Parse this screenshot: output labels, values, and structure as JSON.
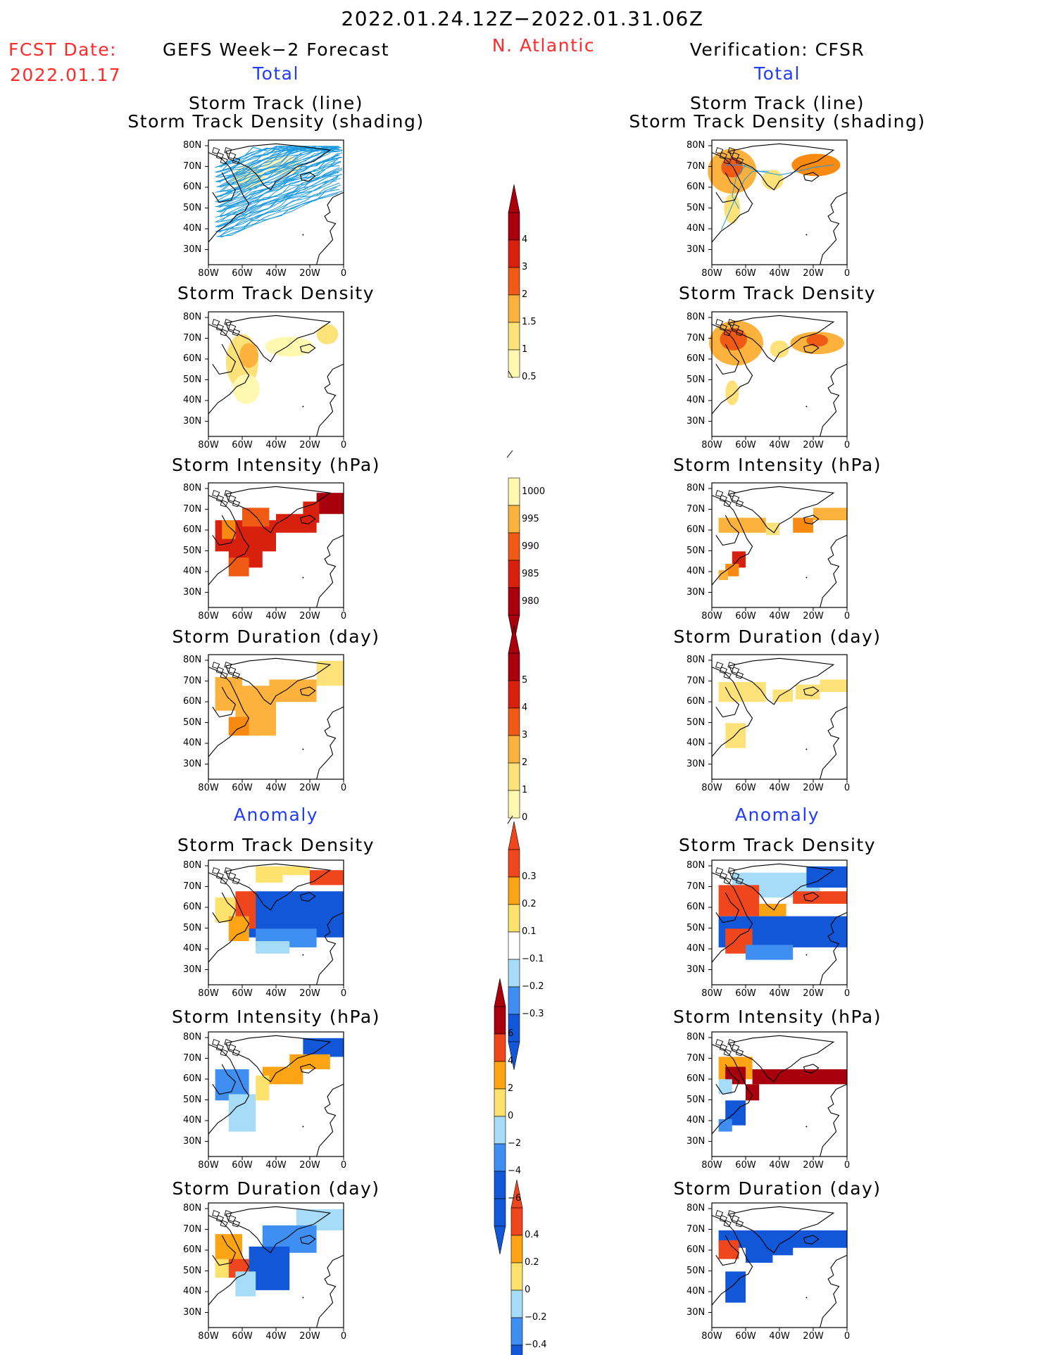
{
  "header": {
    "date_range": "2022.01.24.12Z−2022.01.31.06Z",
    "fcst_label": "FCST Date:",
    "fcst_date": "2022.01.17",
    "left_title": "GEFS Week−2 Forecast",
    "region": "N. Atlantic",
    "right_title": "Verification: CFSR",
    "total_left": "Total",
    "total_right": "Total",
    "anomaly_left": "Anomaly",
    "anomaly_right": "Anomaly"
  },
  "axes": {
    "lat_ticks": [
      "80N",
      "70N",
      "60N",
      "50N",
      "40N",
      "30N"
    ],
    "lon_ticks": [
      "80W",
      "60W",
      "40W",
      "20W",
      "0"
    ]
  },
  "panels": {
    "track_title_1": "Storm Track (line)",
    "track_title_2": "Storm Track Density (shading)",
    "density": "Storm Track Density",
    "intensity": "Storm Intensity (hPa)",
    "duration": "Storm Duration (day)"
  },
  "colorbars": {
    "density": [
      "4",
      "3",
      "2",
      "1.5",
      "1",
      "0.5"
    ],
    "intensity": [
      "1000",
      "995",
      "990",
      "985",
      "980"
    ],
    "duration": [
      "5",
      "4",
      "3",
      "2",
      "1",
      "0"
    ],
    "anom_density": [
      "0.3",
      "0.2",
      "0.1",
      "−0.1",
      "−0.2",
      "−0.3"
    ],
    "anom_intensity": [
      "6",
      "4",
      "2",
      "0",
      "−2",
      "−4",
      "−6"
    ],
    "anom_duration": [
      "0.4",
      "0.2",
      "0",
      "−0.2",
      "−0.4"
    ]
  },
  "colors": {
    "track_line": "#1e9be0",
    "coast": "#000000",
    "warm": [
      "#fff8b0",
      "#fde27a",
      "#fcb23c",
      "#f88a12",
      "#ef5a14",
      "#d8200e",
      "#a8000c"
    ],
    "anom": [
      "#1257d8",
      "#3f8ef2",
      "#a6dcf8",
      "#ffffff",
      "#fde26e",
      "#fca414",
      "#f0461e"
    ]
  }
}
